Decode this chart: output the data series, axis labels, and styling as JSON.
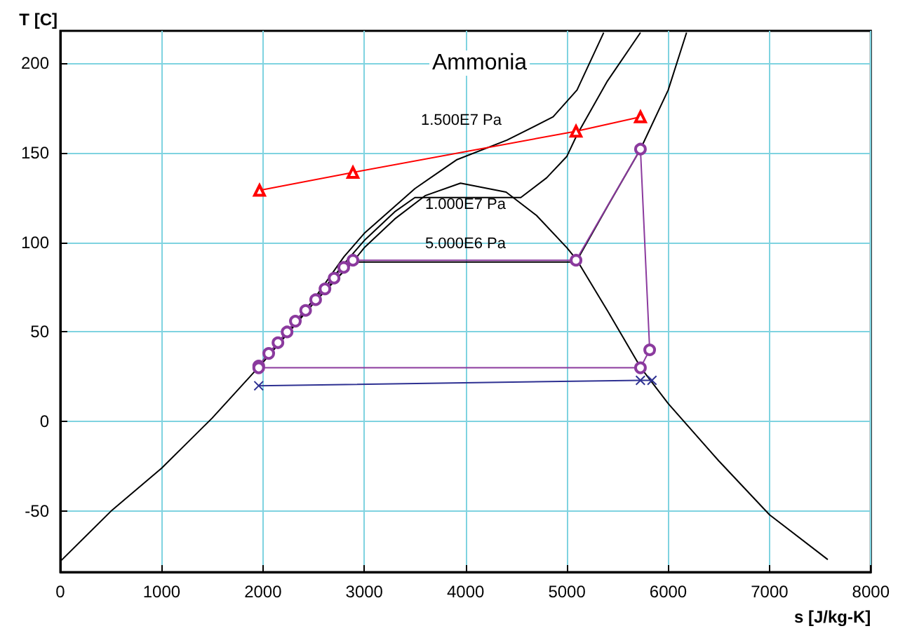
{
  "chart_data": {
    "type": "line",
    "xlabel": "s [J/kg-K]",
    "ylabel": "T [C]",
    "xlim": [
      0,
      8000
    ],
    "xticks": [
      0,
      1000,
      2000,
      3000,
      4000,
      5000,
      6000,
      7000,
      8000
    ],
    "ylim": [
      -84,
      218
    ],
    "yticks": [
      -50,
      0,
      50,
      100,
      150,
      200
    ],
    "grid": true,
    "series": [
      {
        "color": "#000000",
        "marker": "none",
        "x": [
          0,
          500,
          1000,
          1500,
          2000,
          2500,
          2900,
          3000,
          3300,
          3600,
          3950,
          4400,
          4700,
          5000,
          5100,
          5409,
          5730,
          6000,
          6500,
          7000,
          7575
        ],
        "values": [
          -78,
          -50,
          -26,
          2,
          33,
          66,
          90,
          97,
          113,
          126,
          133,
          128,
          115,
          97,
          90,
          61,
          30,
          10,
          -22,
          -52,
          -77
        ]
      },
      {
        "color": "#000000",
        "marker": "none",
        "x": [
          2000,
          2500,
          2888,
          5090,
          5400,
          5726,
          6000,
          6181
        ],
        "values": [
          34,
          67,
          89,
          89,
          120,
          152,
          185,
          217
        ]
      },
      {
        "color": "#000000",
        "marker": "none",
        "x": [
          2000,
          2500,
          2800,
          3000,
          3300,
          3500,
          4545,
          4800,
          5000,
          5100,
          5400,
          5726
        ],
        "values": [
          34,
          67,
          88,
          101,
          117,
          125,
          125,
          136,
          148,
          160,
          190,
          217
        ]
      },
      {
        "color": "#000000",
        "marker": "none",
        "x": [
          2000,
          2500,
          2800,
          3000,
          3500,
          3910,
          4408,
          4864,
          5100,
          5363
        ],
        "values": [
          34,
          68,
          92,
          105,
          130,
          146,
          157,
          170,
          185,
          217
        ]
      },
      {
        "color": "#ff0000",
        "marker": "triangle",
        "x": [
          1966,
          2888,
          5090,
          5726
        ],
        "values": [
          129,
          139,
          162,
          170
        ]
      },
      {
        "color": "#2e3192",
        "marker": "cross",
        "x": [
          1958,
          5726,
          5840
        ],
        "values": [
          20,
          23,
          23
        ]
      },
      {
        "color": "#8b3a9e",
        "marker": "circle",
        "x": [
          1958,
          2057,
          2148,
          2238,
          2320,
          2421,
          2520,
          2612,
          2702,
          2797,
          2888,
          5090,
          5726,
          5817,
          5726,
          1958
        ],
        "values": [
          31,
          38,
          44,
          50,
          56,
          62,
          68,
          74,
          80,
          86,
          90,
          90,
          152,
          40,
          30,
          30
        ]
      }
    ],
    "annotations": [
      "Ammonia",
      "1.500E7 Pa",
      "1.000E7 Pa",
      "5.000E6 Pa"
    ]
  }
}
